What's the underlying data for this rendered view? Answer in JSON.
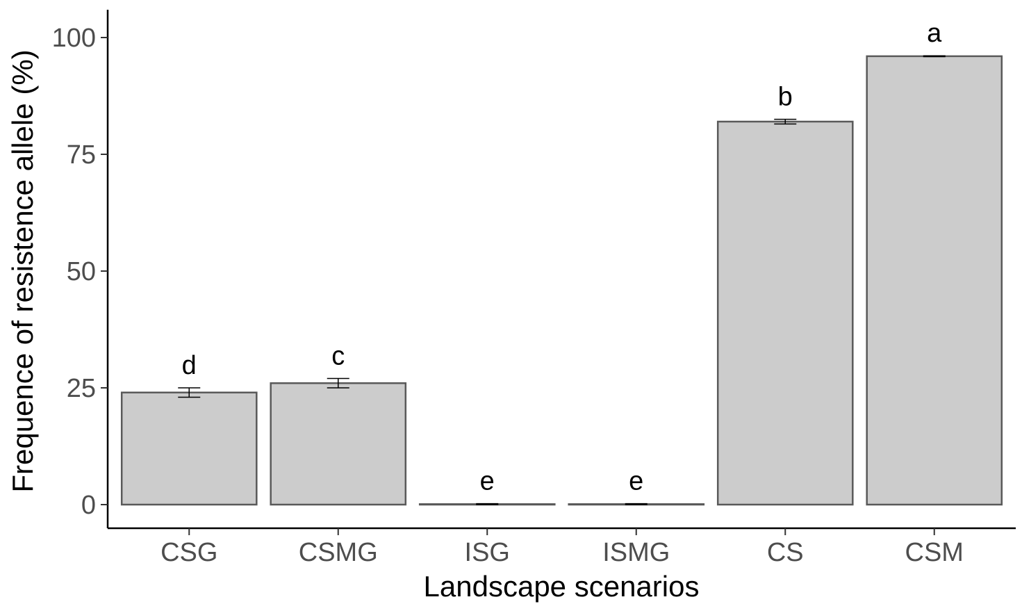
{
  "chart_data": {
    "type": "bar",
    "title": "",
    "xlabel": "Landscape scenarios",
    "ylabel": "Frequence of resistence allele (%)",
    "categories": [
      "CSG",
      "CSMG",
      "ISG",
      "ISMG",
      "CS",
      "CSM"
    ],
    "values": [
      24.0,
      26.0,
      0.1,
      0.1,
      82.0,
      96.0
    ],
    "error_low": [
      23.0,
      25.0,
      0.0,
      0.0,
      81.5,
      95.9
    ],
    "error_high": [
      25.0,
      27.0,
      0.2,
      0.2,
      82.5,
      96.1
    ],
    "significance_labels": [
      "d",
      "c",
      "e",
      "e",
      "b",
      "a"
    ],
    "yticks": [
      0,
      25,
      50,
      75,
      100
    ],
    "ylim": [
      -4.7,
      106
    ],
    "grid": false,
    "bar_fill": "#cccccc",
    "bar_stroke": "#595959"
  }
}
